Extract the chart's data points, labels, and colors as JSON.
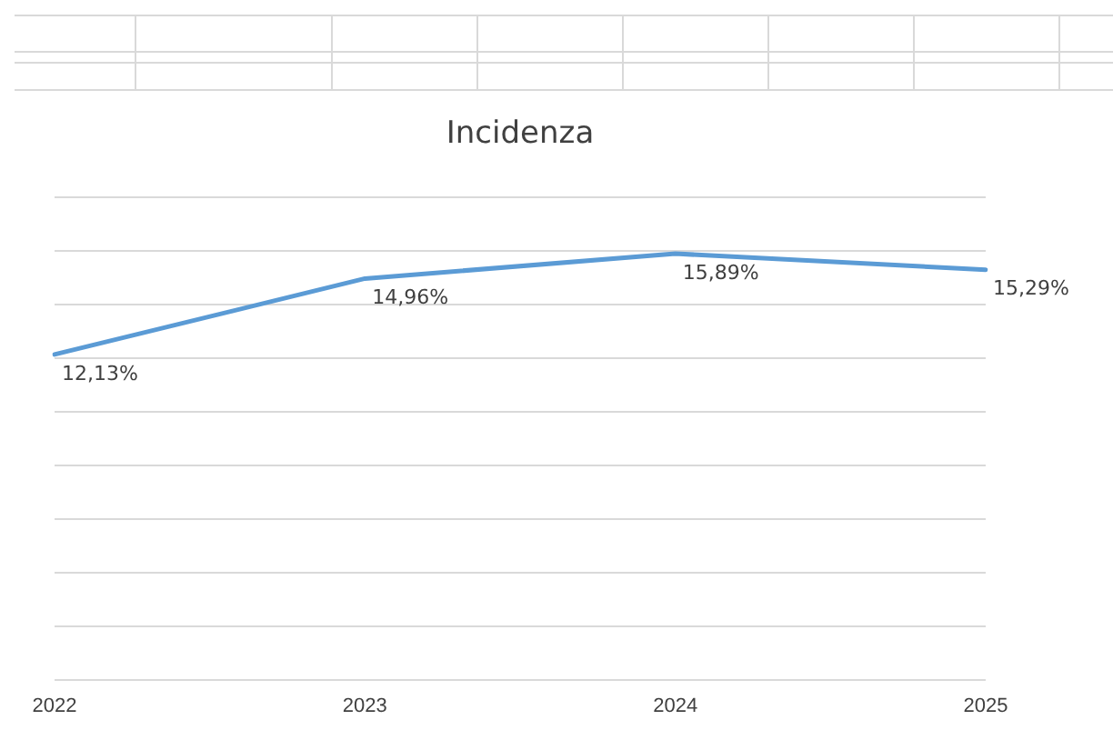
{
  "chart_data": {
    "type": "line",
    "title": "Incidenza",
    "categories": [
      "2022",
      "2023",
      "2024",
      "2025"
    ],
    "series": [
      {
        "color": "#5b9bd5",
        "values": [
          12.13,
          14.96,
          15.89,
          15.29
        ],
        "value_labels": [
          "12,13%",
          "14,96%",
          "15,89%",
          "15,29%"
        ]
      }
    ],
    "ylim": [
      0,
      18
    ],
    "yticks": [
      {
        "value": 0,
        "label": null
      },
      {
        "value": 2,
        "label": null
      },
      {
        "value": 4,
        "label": null
      },
      {
        "value": 6,
        "label": null
      },
      {
        "value": 8,
        "label": null
      },
      {
        "value": 10,
        "label": null
      },
      {
        "value": 12,
        "label": null
      },
      {
        "value": 14,
        "label": null
      },
      {
        "value": 16,
        "label": null
      },
      {
        "value": 18,
        "label": null
      }
    ],
    "grid": "y",
    "legend": false,
    "marker": "none",
    "line_style": "solid",
    "tick_labels": "x"
  }
}
